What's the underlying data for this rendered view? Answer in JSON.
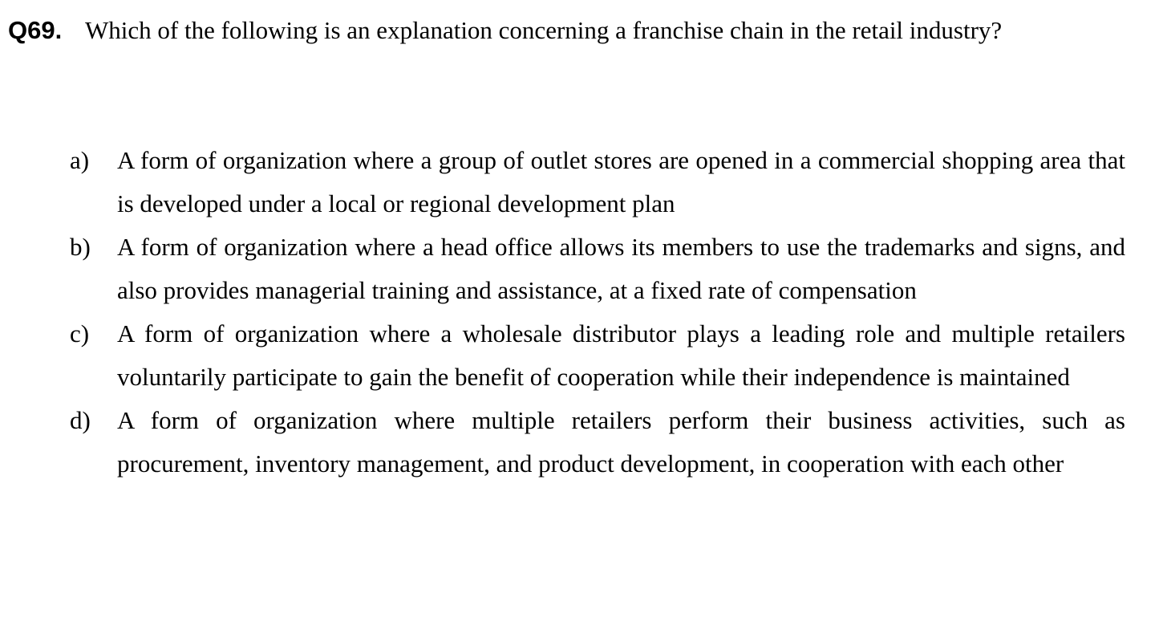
{
  "question": {
    "number": "Q69.",
    "text": "Which of the following is an explanation concerning a franchise chain in the retail industry?"
  },
  "options": [
    {
      "letter": "a)",
      "text": "A form of organization where a group of outlet stores are opened in a commercial shopping area that is developed under a local or regional development plan"
    },
    {
      "letter": "b)",
      "text": "A form of organization where a head office allows its members to use the trademarks and signs, and also provides managerial training and assistance, at a fixed rate of compensation"
    },
    {
      "letter": "c)",
      "text": "A form of organization where a wholesale distributor plays a leading role and multiple retailers voluntarily participate to gain the benefit of cooperation while their independence is maintained"
    },
    {
      "letter": "d)",
      "text": "A form of organization where multiple retailers perform their business activities, such as procurement, inventory management, and product development, in cooperation with each other"
    }
  ]
}
